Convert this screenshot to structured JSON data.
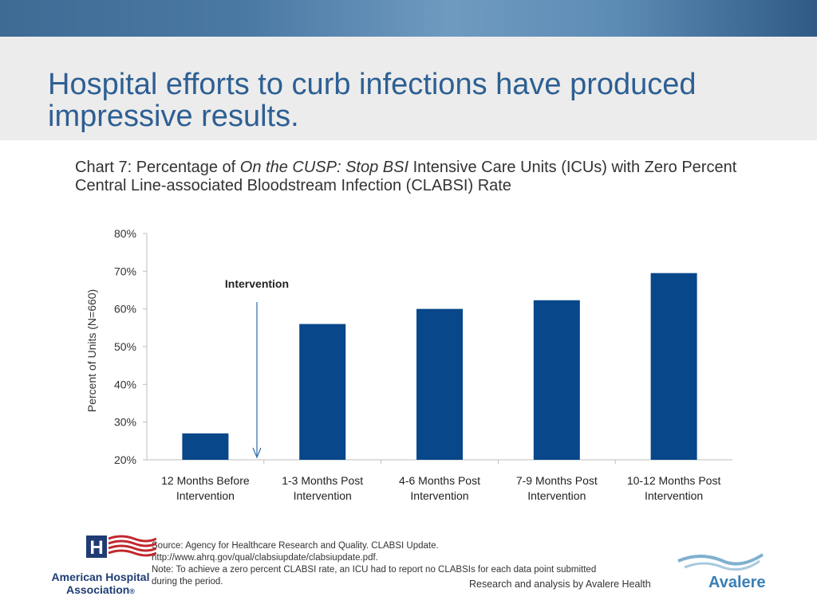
{
  "slide": {
    "title": "Hospital efforts to curb infections have produced impressive results.",
    "subtitle_pre": "Chart 7: Percentage of ",
    "subtitle_italic": "On the CUSP: Stop BSI",
    "subtitle_post": " Intensive Care Units (ICUs) with Zero Percent Central Line-associated Bloodstream Infection (CLABSI) Rate",
    "source_lines": [
      "Source: Agency for Healthcare Research and Quality. CLABSI Update.",
      "http://www.ahrq.gov/qual/clabsiupdate/clabsiupdate.pdf.",
      "Note: To achieve a zero percent CLABSI rate, an ICU had to report no CLABSIs for each data point submitted",
      "during the period."
    ],
    "credit": "Research and analysis by Avalere Health",
    "logo_left": {
      "org_line1": "American Hospital",
      "org_line2": "Association",
      "mark": "®"
    },
    "logo_right": {
      "name": "Avalere"
    }
  },
  "colors": {
    "bar": "#07478a",
    "title": "#2d5f93",
    "axis": "#bfbfbf",
    "arrow": "#2f6fa8"
  },
  "chart_data": {
    "type": "bar",
    "categories": [
      [
        "12 Months Before",
        "Intervention"
      ],
      [
        "1-3 Months Post",
        "Intervention"
      ],
      [
        "4-6 Months Post",
        "Intervention"
      ],
      [
        "7-9 Months Post",
        "Intervention"
      ],
      [
        "10-12 Months Post",
        "Intervention"
      ]
    ],
    "values": [
      27,
      56,
      60,
      62.3,
      69.5
    ],
    "ylabel": "Percent of Units (N=660)",
    "ylim": [
      20,
      80
    ],
    "yticks": [
      20,
      30,
      40,
      50,
      60,
      70,
      80
    ],
    "ytick_suffix": "%",
    "annotation": {
      "text": "Intervention",
      "between": [
        0,
        1
      ]
    },
    "grid": false
  }
}
